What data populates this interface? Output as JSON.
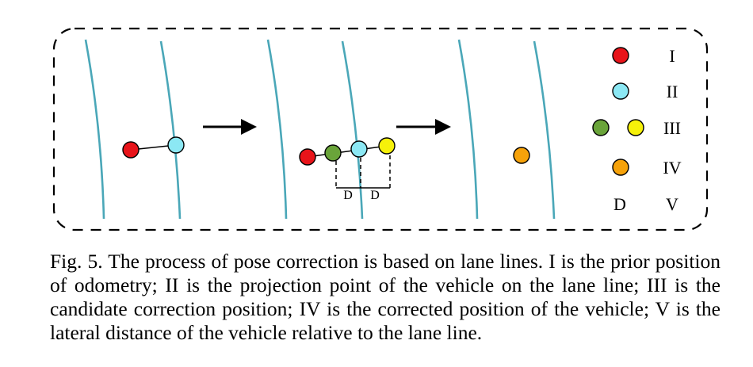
{
  "diagram": {
    "legend": [
      {
        "symbol": "red-dot",
        "label": "I"
      },
      {
        "symbol": "cyan-dot",
        "label": "II"
      },
      {
        "symbol": "green-yellow-dots",
        "label": "III"
      },
      {
        "symbol": "orange-dot",
        "label": "IV"
      },
      {
        "symbol": "D",
        "label": "V"
      }
    ],
    "distance_label": "D",
    "colors": {
      "lane": "#4aa7b8",
      "red": "#e8141a",
      "cyan": "#8ce8f4",
      "green": "#6aa43a",
      "yellow": "#f6f10a",
      "orange": "#f6a20a"
    }
  },
  "caption": "Fig. 5. The process of pose correction is based on lane lines. I is the prior position of odometry; II is the projection point of the vehicle on the lane line; III is the candidate correction position; IV is the corrected position of the vehicle; V is the lateral distance of the vehicle relative to the lane line."
}
